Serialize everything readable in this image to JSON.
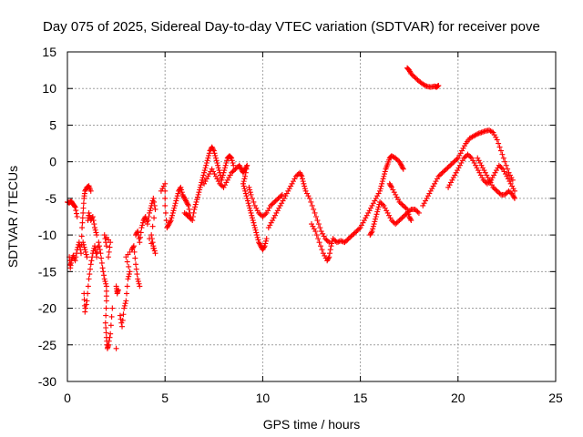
{
  "chart_data": {
    "type": "scatter",
    "title": "Day 075 of 2025, Sidereal Day-to-day VTEC variation (SDTVAR) for receiver pove",
    "xlabel": "GPS time / hours",
    "ylabel": "SDTVAR / TECUs",
    "xlim": [
      0,
      25
    ],
    "ylim": [
      -30,
      15
    ],
    "xticks": [
      0,
      5,
      10,
      15,
      20,
      25
    ],
    "yticks": [
      15,
      10,
      5,
      0,
      -5,
      -10,
      -15,
      -20,
      -25,
      -30
    ],
    "grid": true,
    "marker": "+",
    "color": "#ff0000",
    "series": [
      {
        "name": "SDTVAR",
        "points": [
          [
            0.0,
            -5.5
          ],
          [
            0.1,
            -5.6
          ],
          [
            0.2,
            -5.4
          ],
          [
            0.3,
            -5.8
          ],
          [
            0.4,
            -6.2
          ],
          [
            0.5,
            -7.5
          ],
          [
            0.1,
            -13.0
          ],
          [
            0.15,
            -14.5
          ],
          [
            0.2,
            -13.5
          ],
          [
            0.3,
            -12.8
          ],
          [
            0.4,
            -13.5
          ],
          [
            0.5,
            -12.0
          ],
          [
            0.6,
            -11.0
          ],
          [
            0.7,
            -12.5
          ],
          [
            0.75,
            -9.0
          ],
          [
            0.8,
            -7.0
          ],
          [
            0.85,
            -5.0
          ],
          [
            0.9,
            -4.0
          ],
          [
            1.0,
            -3.5
          ],
          [
            1.1,
            -3.3
          ],
          [
            1.2,
            -4.0
          ],
          [
            0.8,
            -11.0
          ],
          [
            0.9,
            -12.0
          ],
          [
            1.0,
            -13.0
          ],
          [
            1.05,
            -8.0
          ],
          [
            1.1,
            -7.0
          ],
          [
            1.2,
            -8.0
          ],
          [
            1.3,
            -7.5
          ],
          [
            1.4,
            -9.0
          ],
          [
            1.5,
            -10.0
          ],
          [
            0.85,
            -18.0
          ],
          [
            0.9,
            -20.5
          ],
          [
            1.0,
            -19.0
          ],
          [
            1.1,
            -16.0
          ],
          [
            1.2,
            -14.0
          ],
          [
            1.3,
            -12.5
          ],
          [
            1.4,
            -11.5
          ],
          [
            1.5,
            -13.0
          ],
          [
            1.6,
            -11.0
          ],
          [
            1.7,
            -12.5
          ],
          [
            1.8,
            -14.5
          ],
          [
            1.9,
            -16.0
          ],
          [
            2.0,
            -17.0
          ],
          [
            2.0,
            -19.0
          ],
          [
            1.95,
            -22.0
          ],
          [
            2.0,
            -24.0
          ],
          [
            2.05,
            -25.5
          ],
          [
            2.1,
            -25.0
          ],
          [
            2.2,
            -23.5
          ],
          [
            2.3,
            -20.0
          ],
          [
            2.1,
            -13.0
          ],
          [
            2.2,
            -11.0
          ],
          [
            1.9,
            -10.0
          ],
          [
            2.0,
            -11.5
          ],
          [
            2.5,
            -17.0
          ],
          [
            2.55,
            -18.0
          ],
          [
            2.6,
            -17.5
          ],
          [
            2.5,
            -25.5
          ],
          [
            2.7,
            -21.0
          ],
          [
            2.8,
            -22.5
          ],
          [
            2.9,
            -20.0
          ],
          [
            3.0,
            -19.0
          ],
          [
            3.1,
            -16.0
          ],
          [
            3.2,
            -15.0
          ],
          [
            3.0,
            -13.0
          ],
          [
            3.3,
            -12.0
          ],
          [
            3.4,
            -11.5
          ],
          [
            3.5,
            -14.0
          ],
          [
            3.6,
            -16.0
          ],
          [
            3.7,
            -17.0
          ],
          [
            3.5,
            -10.0
          ],
          [
            3.6,
            -9.5
          ],
          [
            3.7,
            -11.0
          ],
          [
            3.8,
            -9.0
          ],
          [
            3.9,
            -8.0
          ],
          [
            4.0,
            -7.5
          ],
          [
            4.1,
            -8.5
          ],
          [
            4.2,
            -7.0
          ],
          [
            4.3,
            -6.0
          ],
          [
            4.4,
            -5.0
          ],
          [
            4.5,
            -6.5
          ],
          [
            4.3,
            -10.0
          ],
          [
            4.4,
            -11.5
          ],
          [
            4.5,
            -12.5
          ],
          [
            4.2,
            -10.5
          ],
          [
            4.8,
            -4.0
          ],
          [
            5.0,
            -3.0
          ],
          [
            5.0,
            -6.0
          ],
          [
            5.1,
            -9.0
          ],
          [
            5.2,
            -8.5
          ],
          [
            5.3,
            -8.0
          ],
          [
            5.4,
            -7.0
          ],
          [
            5.5,
            -6.0
          ],
          [
            5.6,
            -5.0
          ],
          [
            5.7,
            -4.0
          ],
          [
            5.8,
            -3.5
          ],
          [
            5.9,
            -4.5
          ],
          [
            6.0,
            -5.0
          ],
          [
            6.1,
            -5.5
          ],
          [
            6.2,
            -6.0
          ],
          [
            6.3,
            -7.5
          ],
          [
            6.0,
            -7.0
          ],
          [
            6.2,
            -7.5
          ],
          [
            6.4,
            -8.0
          ],
          [
            6.5,
            -6.5
          ],
          [
            6.6,
            -5.5
          ],
          [
            6.7,
            -4.5
          ],
          [
            6.8,
            -3.5
          ],
          [
            6.9,
            -2.5
          ],
          [
            7.0,
            -1.5
          ],
          [
            7.1,
            -0.5
          ],
          [
            7.2,
            0.5
          ],
          [
            7.3,
            1.5
          ],
          [
            7.4,
            2.0
          ],
          [
            7.5,
            1.5
          ],
          [
            7.6,
            0.5
          ],
          [
            7.7,
            -0.5
          ],
          [
            7.8,
            -1.5
          ],
          [
            7.9,
            -2.5
          ],
          [
            8.0,
            -1.5
          ],
          [
            8.1,
            -0.5
          ],
          [
            8.2,
            0.5
          ],
          [
            8.3,
            0.8
          ],
          [
            8.4,
            0.5
          ],
          [
            8.5,
            -0.5
          ],
          [
            7.0,
            -3.0
          ],
          [
            7.2,
            -2.0
          ],
          [
            7.4,
            -1.0
          ],
          [
            7.6,
            -2.0
          ],
          [
            7.8,
            -3.0
          ],
          [
            8.0,
            -3.5
          ],
          [
            8.2,
            -2.5
          ],
          [
            8.4,
            -1.5
          ],
          [
            8.6,
            -1.0
          ],
          [
            8.8,
            -0.5
          ],
          [
            8.9,
            -1.0
          ],
          [
            9.0,
            -1.5
          ],
          [
            9.1,
            -1.0
          ],
          [
            9.2,
            -0.5
          ],
          [
            9.1,
            -2.0
          ],
          [
            9.0,
            -3.0
          ],
          [
            9.1,
            -4.0
          ],
          [
            9.2,
            -5.0
          ],
          [
            9.3,
            -6.0
          ],
          [
            9.4,
            -7.0
          ],
          [
            9.5,
            -8.0
          ],
          [
            9.6,
            -9.0
          ],
          [
            9.7,
            -10.0
          ],
          [
            9.8,
            -11.0
          ],
          [
            9.9,
            -11.5
          ],
          [
            10.0,
            -12.0
          ],
          [
            10.1,
            -11.5
          ],
          [
            10.2,
            -10.5
          ],
          [
            9.3,
            -3.5
          ],
          [
            9.4,
            -4.5
          ],
          [
            9.6,
            -6.0
          ],
          [
            9.8,
            -7.0
          ],
          [
            10.0,
            -7.5
          ],
          [
            10.2,
            -7.0
          ],
          [
            10.4,
            -6.0
          ],
          [
            10.6,
            -5.5
          ],
          [
            10.8,
            -5.0
          ],
          [
            11.0,
            -4.5
          ],
          [
            10.3,
            -9.0
          ],
          [
            10.5,
            -8.0
          ],
          [
            10.7,
            -7.0
          ],
          [
            10.9,
            -6.0
          ],
          [
            11.1,
            -5.0
          ],
          [
            11.3,
            -4.0
          ],
          [
            11.5,
            -3.0
          ],
          [
            11.7,
            -2.0
          ],
          [
            11.9,
            -1.5
          ],
          [
            12.0,
            -2.0
          ],
          [
            12.1,
            -3.0
          ],
          [
            12.2,
            -4.0
          ],
          [
            12.4,
            -5.0
          ],
          [
            12.6,
            -6.5
          ],
          [
            12.8,
            -8.0
          ],
          [
            13.0,
            -9.5
          ],
          [
            13.2,
            -10.5
          ],
          [
            13.4,
            -11.0
          ],
          [
            12.5,
            -8.5
          ],
          [
            12.7,
            -9.5
          ],
          [
            12.9,
            -11.0
          ],
          [
            13.1,
            -12.5
          ],
          [
            13.3,
            -13.5
          ],
          [
            13.4,
            -13.0
          ],
          [
            13.5,
            -11.5
          ],
          [
            13.6,
            -10.5
          ],
          [
            13.8,
            -11.0
          ],
          [
            14.0,
            -10.8
          ],
          [
            14.2,
            -11.0
          ],
          [
            14.4,
            -10.5
          ],
          [
            14.6,
            -10.0
          ],
          [
            14.8,
            -9.5
          ],
          [
            15.0,
            -9.0
          ],
          [
            15.2,
            -8.0
          ],
          [
            15.4,
            -7.0
          ],
          [
            15.6,
            -6.0
          ],
          [
            15.8,
            -5.0
          ],
          [
            16.0,
            -4.0
          ],
          [
            16.1,
            -3.0
          ],
          [
            16.2,
            -2.0
          ],
          [
            16.3,
            -1.0
          ],
          [
            16.4,
            -0.3
          ],
          [
            16.5,
            0.5
          ],
          [
            16.6,
            0.8
          ],
          [
            16.8,
            0.5
          ],
          [
            17.0,
            0.0
          ],
          [
            17.1,
            -0.5
          ],
          [
            17.2,
            -1.0
          ],
          [
            15.5,
            -10.0
          ],
          [
            15.6,
            -9.5
          ],
          [
            15.7,
            -8.5
          ],
          [
            15.8,
            -7.5
          ],
          [
            15.9,
            -6.5
          ],
          [
            16.0,
            -5.5
          ],
          [
            16.2,
            -6.0
          ],
          [
            16.4,
            -7.0
          ],
          [
            16.6,
            -8.0
          ],
          [
            16.8,
            -8.5
          ],
          [
            17.0,
            -8.0
          ],
          [
            17.2,
            -7.5
          ],
          [
            17.4,
            -7.0
          ],
          [
            17.6,
            -6.5
          ],
          [
            17.8,
            -6.5
          ],
          [
            18.0,
            -7.0
          ],
          [
            16.5,
            -3.0
          ],
          [
            16.6,
            -3.5
          ],
          [
            16.8,
            -4.5
          ],
          [
            17.0,
            -5.5
          ],
          [
            17.2,
            -6.0
          ],
          [
            17.4,
            -6.5
          ],
          [
            17.5,
            -7.5
          ],
          [
            17.6,
            -8.0
          ],
          [
            18.2,
            -6.0
          ],
          [
            18.4,
            -5.0
          ],
          [
            18.6,
            -4.0
          ],
          [
            18.8,
            -3.0
          ],
          [
            19.0,
            -2.0
          ],
          [
            19.2,
            -1.5
          ],
          [
            19.4,
            -1.0
          ],
          [
            19.6,
            -0.5
          ],
          [
            19.8,
            0.0
          ],
          [
            20.0,
            0.5
          ],
          [
            20.2,
            1.5
          ],
          [
            20.4,
            2.5
          ],
          [
            20.6,
            3.2
          ],
          [
            20.8,
            3.5
          ],
          [
            21.0,
            3.8
          ],
          [
            21.2,
            4.0
          ],
          [
            21.4,
            4.2
          ],
          [
            21.6,
            4.3
          ],
          [
            21.8,
            4.0
          ],
          [
            22.0,
            3.0
          ],
          [
            22.2,
            1.5
          ],
          [
            22.4,
            0.0
          ],
          [
            22.6,
            -1.5
          ],
          [
            22.8,
            -2.5
          ],
          [
            19.5,
            -3.5
          ],
          [
            19.7,
            -2.5
          ],
          [
            19.9,
            -1.5
          ],
          [
            20.1,
            -0.5
          ],
          [
            20.3,
            0.5
          ],
          [
            20.5,
            1.0
          ],
          [
            20.7,
            0.5
          ],
          [
            20.9,
            -0.5
          ],
          [
            21.1,
            -1.5
          ],
          [
            21.3,
            -2.5
          ],
          [
            21.5,
            -3.0
          ],
          [
            21.7,
            -2.5
          ],
          [
            21.9,
            -1.5
          ],
          [
            22.1,
            -0.5
          ],
          [
            22.3,
            -1.0
          ],
          [
            22.5,
            -2.0
          ],
          [
            22.7,
            -3.0
          ],
          [
            22.9,
            -4.0
          ],
          [
            21.0,
            0.5
          ],
          [
            21.2,
            -0.5
          ],
          [
            21.4,
            -1.5
          ],
          [
            21.6,
            -2.5
          ],
          [
            21.8,
            -3.5
          ],
          [
            22.0,
            -4.0
          ],
          [
            22.2,
            -4.5
          ],
          [
            22.4,
            -4.5
          ],
          [
            22.6,
            -4.0
          ],
          [
            22.8,
            -4.5
          ],
          [
            22.9,
            -5.0
          ],
          [
            17.4,
            12.8
          ],
          [
            17.5,
            12.5
          ],
          [
            17.6,
            12.0
          ],
          [
            17.8,
            11.5
          ],
          [
            18.0,
            11.0
          ],
          [
            18.2,
            10.6
          ],
          [
            18.4,
            10.3
          ],
          [
            18.6,
            10.2
          ],
          [
            18.8,
            10.3
          ],
          [
            18.9,
            10.2
          ],
          [
            19.0,
            10.4
          ]
        ]
      }
    ]
  }
}
